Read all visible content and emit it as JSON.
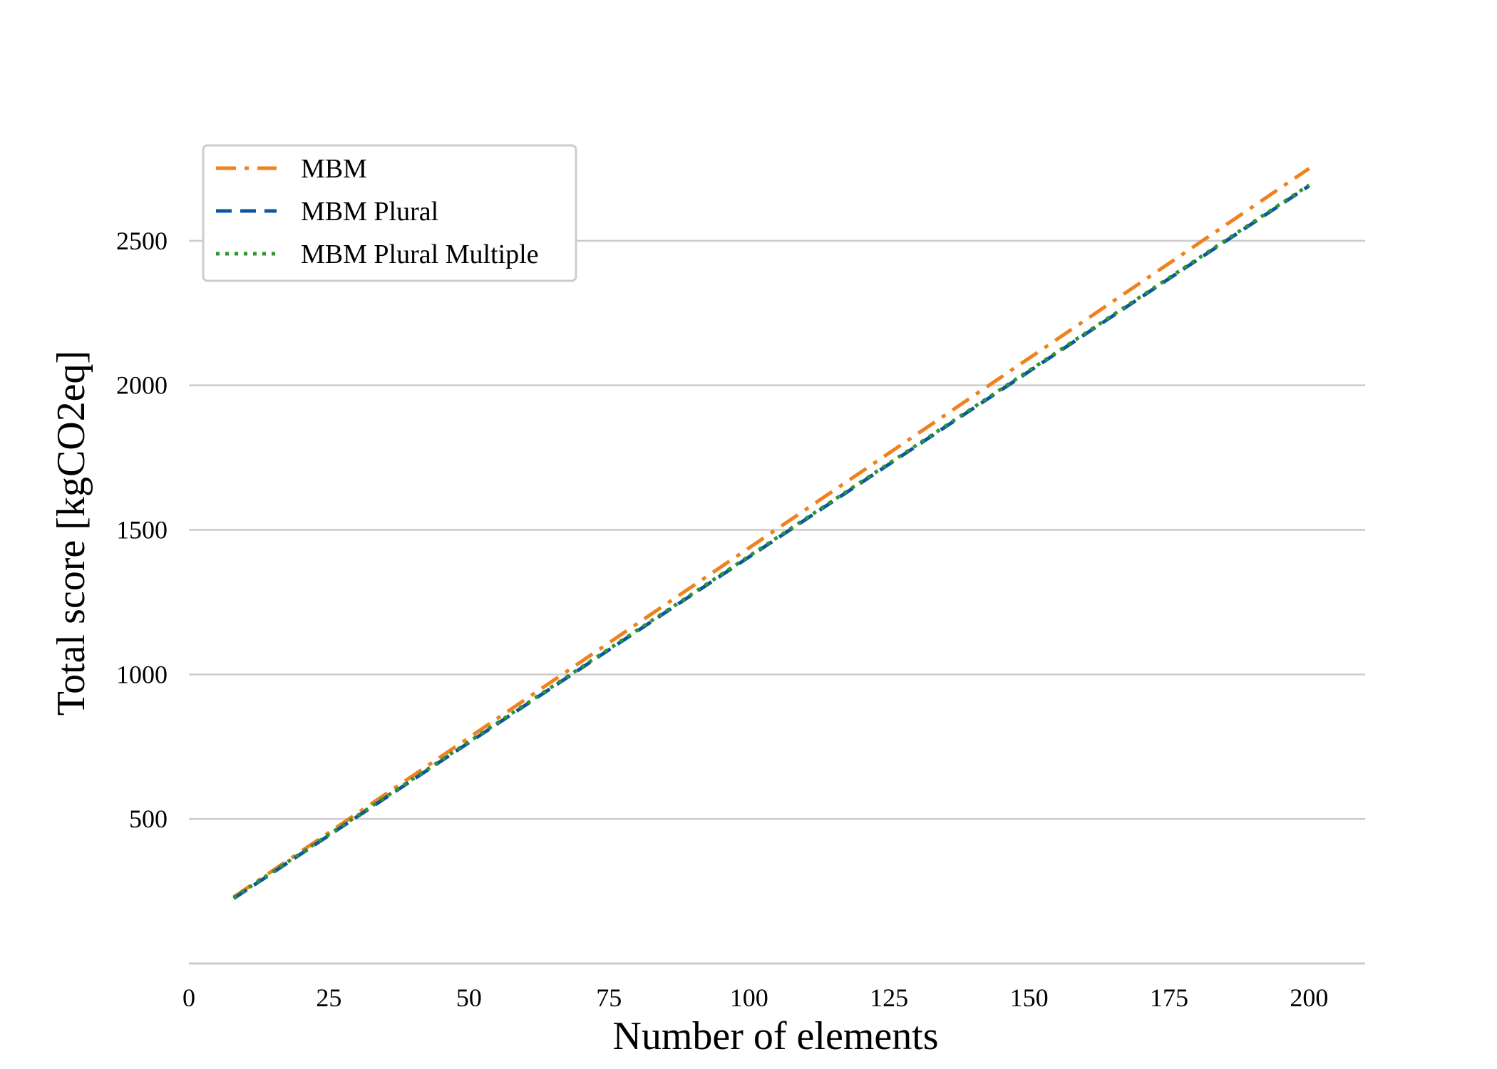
{
  "chart_data": {
    "type": "line",
    "xlabel": "Number of elements",
    "ylabel": "Total score [kgCO2eq]",
    "xlim": [
      0,
      210
    ],
    "ylim": [
      0,
      3000
    ],
    "xticks": [
      0,
      25,
      50,
      75,
      100,
      125,
      150,
      175,
      200
    ],
    "yticks": [
      500,
      1000,
      1500,
      2000,
      2500
    ],
    "grid": "horizontal",
    "legend_position": "top-left",
    "series": [
      {
        "name": "MBM",
        "x": [
          8,
          200
        ],
        "y": [
          230,
          2750
        ],
        "color": "#f0821e",
        "style": "dashdot"
      },
      {
        "name": "MBM Plural",
        "x": [
          8,
          200
        ],
        "y": [
          225,
          2690
        ],
        "color": "#0d56a4",
        "style": "dashed"
      },
      {
        "name": "MBM Plural Multiple",
        "x": [
          8,
          200
        ],
        "y": [
          228,
          2693
        ],
        "color": "#2e962e",
        "style": "dotted"
      }
    ]
  }
}
